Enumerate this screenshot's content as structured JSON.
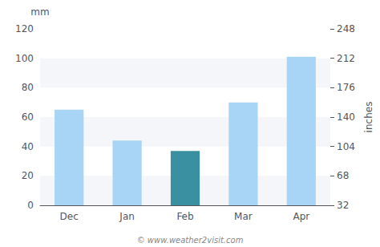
{
  "chart_data": {
    "type": "bar",
    "categories": [
      "Dec",
      "Jan",
      "Feb",
      "Mar",
      "Apr"
    ],
    "values": [
      65,
      44,
      37,
      70,
      101
    ],
    "colors": [
      "#a8d4f5",
      "#a8d4f5",
      "#3a8fa0",
      "#a8d4f5",
      "#a8d4f5"
    ],
    "ylabel": "mm",
    "y2label": "inches",
    "ylim": [
      0,
      120
    ],
    "yticks": [
      0,
      20,
      40,
      60,
      80,
      100,
      120
    ],
    "y2lim": [
      32,
      248
    ],
    "y2ticks": [
      32,
      68,
      104,
      140,
      176,
      212,
      248
    ],
    "grid": false,
    "annotations": [
      "© www.weather2visit.com"
    ]
  }
}
